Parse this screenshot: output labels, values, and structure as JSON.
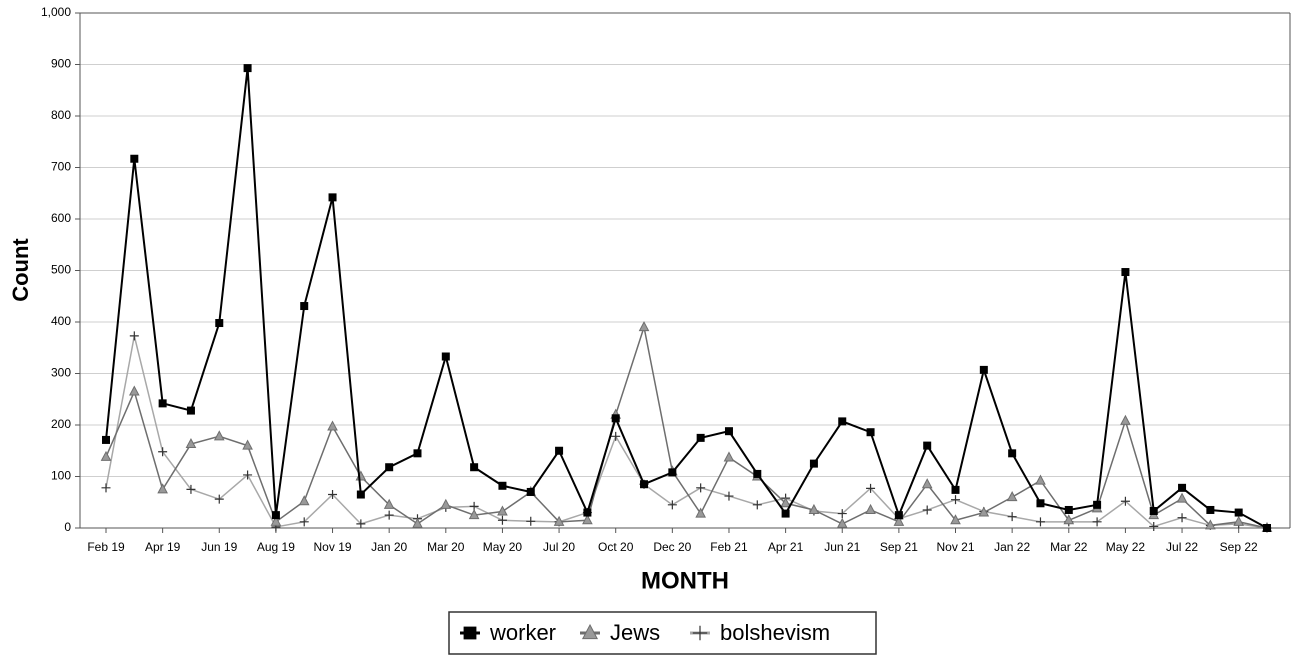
{
  "chart_data": {
    "type": "line",
    "x_label": "MONTH",
    "y_label": "Count",
    "categories": [
      "Feb 19",
      null,
      "Apr 19",
      null,
      "Jun 19",
      null,
      "Aug 19",
      null,
      "Nov 19",
      null,
      "Jan 20",
      null,
      "Mar 20",
      null,
      "May 20",
      null,
      "Jul 20",
      null,
      "Oct 20",
      null,
      "Dec 20",
      null,
      "Feb 21",
      null,
      "Apr 21",
      null,
      "Jun 21",
      null,
      "Sep 21",
      null,
      "Nov 21",
      null,
      "Jan 22",
      null,
      "Mar 22",
      null,
      "May 22",
      null,
      "Jul 22",
      null,
      "Sep 22",
      null
    ],
    "series": [
      {
        "name": "worker",
        "color": "#000000",
        "marker": "square",
        "values": [
          171,
          717,
          242,
          228,
          398,
          893,
          25,
          431,
          642,
          65,
          118,
          145,
          333,
          118,
          82,
          70,
          150,
          30,
          213,
          85,
          108,
          175,
          188,
          105,
          28,
          125,
          207,
          186,
          25,
          160,
          74,
          307,
          145,
          48,
          35,
          45,
          497,
          33,
          78,
          35,
          30,
          0
        ]
      },
      {
        "name": "Jews",
        "color": "#6e6e6e",
        "marker": "triangle",
        "values": [
          138,
          265,
          75,
          163,
          178,
          160,
          12,
          52,
          197,
          100,
          45,
          8,
          45,
          25,
          32,
          70,
          12,
          15,
          220,
          390,
          110,
          28,
          137,
          100,
          48,
          35,
          8,
          35,
          12,
          85,
          15,
          30,
          60,
          92,
          15,
          38,
          208,
          25,
          57,
          5,
          12,
          0
        ]
      },
      {
        "name": "bolshevism",
        "color": "#a8a8a8",
        "marker": "plus",
        "values": [
          78,
          373,
          148,
          75,
          56,
          103,
          2,
          12,
          65,
          8,
          25,
          18,
          40,
          42,
          15,
          13,
          12,
          30,
          178,
          85,
          45,
          78,
          62,
          45,
          58,
          33,
          28,
          77,
          18,
          35,
          55,
          32,
          22,
          12,
          12,
          12,
          52,
          3,
          20,
          5,
          8,
          0
        ]
      }
    ],
    "ylim": [
      0,
      1000
    ],
    "yticks": [
      0,
      100,
      200,
      300,
      400,
      500,
      600,
      700,
      800,
      900,
      {
        "value": 1000,
        "label": "1,000"
      }
    ],
    "grid": true,
    "legend": "bottom"
  }
}
